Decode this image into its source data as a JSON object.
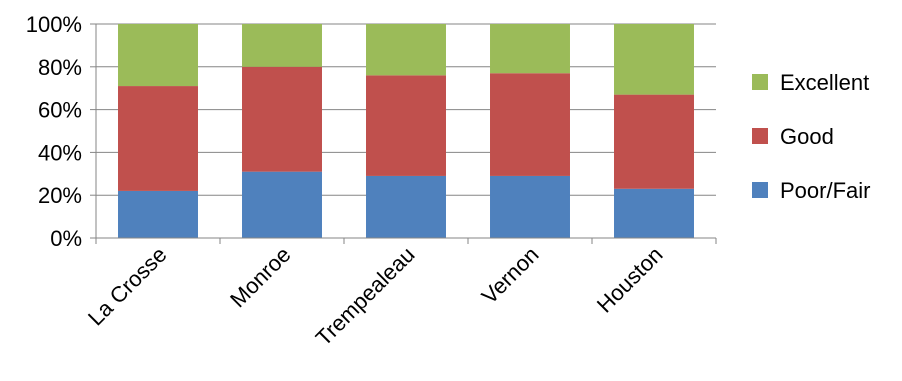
{
  "chart_data": {
    "type": "bar",
    "stacked": true,
    "percent_axis": true,
    "categories": [
      "La Crosse",
      "Monroe",
      "Trempealeau",
      "Vernon",
      "Houston"
    ],
    "series": [
      {
        "name": "Poor/Fair",
        "color": "#4F81BD",
        "values": [
          22,
          31,
          29,
          29,
          23
        ]
      },
      {
        "name": "Good",
        "color": "#C0504D",
        "values": [
          49,
          49,
          47,
          48,
          44
        ]
      },
      {
        "name": "Excellent",
        "color": "#9BBB59",
        "values": [
          29,
          20,
          24,
          23,
          33
        ]
      }
    ],
    "yticks": [
      "0%",
      "20%",
      "40%",
      "60%",
      "80%",
      "100%"
    ],
    "ylim": [
      0,
      100
    ],
    "grid": true,
    "legend_position": "right",
    "legend_order": [
      "Excellent",
      "Good",
      "Poor/Fair"
    ]
  }
}
